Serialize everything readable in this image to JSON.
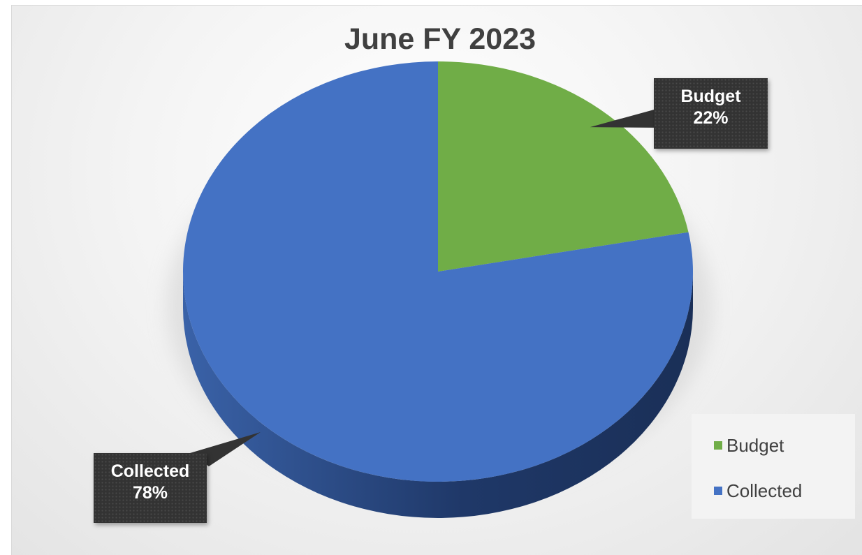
{
  "chart_data": {
    "type": "pie",
    "title": "June FY 2023",
    "categories": [
      "Budget",
      "Collected"
    ],
    "values": [
      22,
      78
    ],
    "unit": "%",
    "colors": [
      "#70ad47",
      "#4472c4"
    ],
    "data_labels": [
      {
        "category": "Budget",
        "text": "Budget",
        "value_text": "22%"
      },
      {
        "category": "Collected",
        "text": "Collected",
        "value_text": "78%"
      }
    ],
    "legend": {
      "placement": "bottom-right",
      "entries": [
        {
          "label": "Budget",
          "color": "#70ad47"
        },
        {
          "label": "Collected",
          "color": "#4472c4"
        }
      ]
    },
    "style": "3d"
  }
}
